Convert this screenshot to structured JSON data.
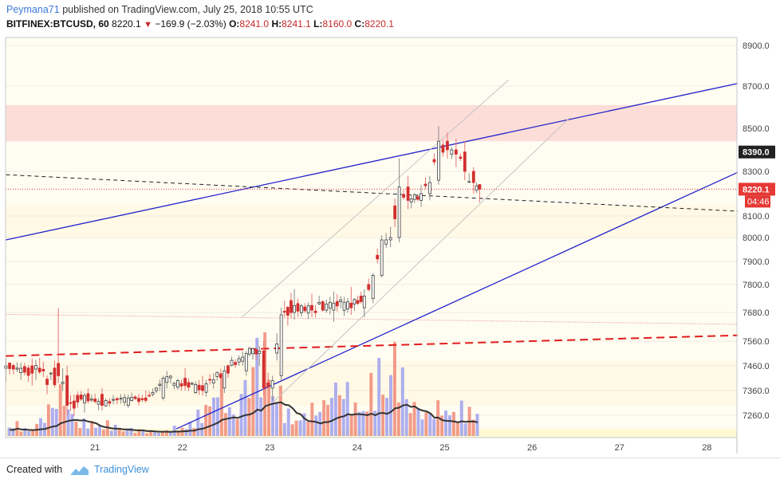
{
  "header": {
    "author": "Peymana71",
    "published_text": "published on TradingView.com, July 25, 2018 10:55 UTC",
    "symbol": "BITFINEX:BTCUSD, 60",
    "last": "8220.1",
    "change": "−169.9 (−2.03%)",
    "o_label": "O:",
    "o_value": "8241.0",
    "h_label": "H:",
    "h_value": "8241.1",
    "l_label": "L:",
    "l_value": "8160.0",
    "c_label": "C:",
    "c_value": "8220.1",
    "down_arrow": "▼"
  },
  "footer": {
    "created_with": "Created with",
    "brand": "TradingView"
  },
  "colors": {
    "up": "#3f3f3f",
    "down": "#d32f2f",
    "vol_up": "#9fa0f0",
    "vol_down": "#f08a78",
    "trendline": "#2222cc",
    "channel": "#c4c4c4",
    "resistance_zone": "#fcd9d5",
    "support_dashed": "#e11d1d",
    "price_tag": "#e53935",
    "marker_tag": "#222222"
  },
  "chart_data": {
    "type": "candlestick",
    "symbol": "BITFINEX:BTCUSD",
    "interval": "60",
    "y_ticks": [
      8900,
      8700,
      8500,
      8300,
      8100,
      8000,
      7900,
      7800,
      7680,
      7560,
      7460,
      7360,
      7260
    ],
    "y_tick_labels": [
      "8900.0",
      "8700.0",
      "8500.0",
      "8300.0",
      "8100.0",
      "8000.0",
      "7900.0",
      "7800.0",
      "7680.0",
      "7560.0",
      "7460.0",
      "7360.0",
      "7260.0"
    ],
    "x_ticks": [
      21,
      22,
      23,
      24,
      25,
      26,
      27,
      28
    ],
    "x_tick_labels": [
      "21",
      "22",
      "23",
      "24",
      "25",
      "26",
      "27",
      "28"
    ],
    "x_range": [
      20.0,
      28.45
    ],
    "price_tag": {
      "value": 8220.1,
      "label": "8220.1"
    },
    "countdown_tag": {
      "label": "04:46"
    },
    "marker_tag": {
      "value": 8390.0,
      "label": "8390.0"
    },
    "resistance_zone": [
      8440,
      8610
    ],
    "trendlines": [
      {
        "name": "upper-blue-trendline",
        "points": [
          [
            20.0,
            7990
          ],
          [
            28.45,
            8720
          ]
        ],
        "style": "solid"
      },
      {
        "name": "lower-blue-trendline",
        "points": [
          [
            21.95,
            7205
          ],
          [
            28.45,
            8310
          ]
        ],
        "style": "solid"
      },
      {
        "name": "black-dashed-trendline",
        "points": [
          [
            20.0,
            8285
          ],
          [
            28.45,
            8120
          ]
        ],
        "style": "dashed"
      },
      {
        "name": "red-dashed-support",
        "points": [
          [
            20.0,
            7500
          ],
          [
            28.45,
            7585
          ]
        ],
        "style": "dashed"
      },
      {
        "name": "red-dotted-line",
        "points": [
          [
            20.0,
            7672
          ],
          [
            28.45,
            7630
          ]
        ],
        "style": "dotted"
      },
      {
        "name": "channel-upper",
        "points": [
          [
            22.7,
            7660
          ],
          [
            25.75,
            8730
          ]
        ],
        "style": "solid"
      },
      {
        "name": "channel-lower",
        "points": [
          [
            23.05,
            7310
          ],
          [
            26.45,
            8550
          ]
        ],
        "style": "solid"
      }
    ],
    "anchor_candles": [
      [
        20.0,
        7450,
        7490,
        7395,
        7460
      ],
      [
        20.3,
        7460,
        7490,
        7380,
        7430
      ],
      [
        20.6,
        7470,
        7700,
        7390,
        7420
      ],
      [
        20.7,
        7420,
        7460,
        7260,
        7300
      ],
      [
        20.9,
        7310,
        7350,
        7270,
        7340
      ],
      [
        21.1,
        7345,
        7370,
        7280,
        7300
      ],
      [
        21.4,
        7300,
        7345,
        7290,
        7330
      ],
      [
        21.6,
        7330,
        7360,
        7310,
        7320
      ],
      [
        21.8,
        7330,
        7420,
        7320,
        7410
      ],
      [
        22.05,
        7410,
        7450,
        7360,
        7380
      ],
      [
        22.25,
        7380,
        7420,
        7340,
        7360
      ],
      [
        22.5,
        7370,
        7460,
        7350,
        7440
      ],
      [
        22.75,
        7440,
        7520,
        7420,
        7510
      ],
      [
        22.9,
        7510,
        7540,
        7460,
        7520
      ],
      [
        22.95,
        7520,
        7560,
        7340,
        7370
      ],
      [
        23.05,
        7370,
        7420,
        7320,
        7400
      ],
      [
        23.15,
        7420,
        7700,
        7400,
        7670
      ],
      [
        23.3,
        7680,
        7780,
        7650,
        7710
      ],
      [
        23.5,
        7710,
        7760,
        7660,
        7690
      ],
      [
        23.75,
        7690,
        7770,
        7640,
        7720
      ],
      [
        23.95,
        7720,
        7790,
        7670,
        7700
      ],
      [
        24.1,
        7700,
        7780,
        7660,
        7750
      ],
      [
        24.2,
        7740,
        7850,
        7720,
        7840
      ],
      [
        24.3,
        7840,
        8010,
        7830,
        7990
      ],
      [
        24.4,
        7990,
        8050,
        7960,
        8000
      ],
      [
        24.5,
        8000,
        8360,
        7980,
        8230
      ],
      [
        24.6,
        8230,
        8280,
        8130,
        8170
      ],
      [
        24.75,
        8170,
        8240,
        8140,
        8200
      ],
      [
        24.85,
        8200,
        8280,
        8170,
        8250
      ],
      [
        24.95,
        8260,
        8510,
        8240,
        8440
      ],
      [
        25.05,
        8440,
        8480,
        8360,
        8400
      ],
      [
        25.15,
        8400,
        8450,
        8320,
        8380
      ],
      [
        25.25,
        8390,
        8440,
        8260,
        8300
      ],
      [
        25.35,
        8300,
        8320,
        8200,
        8250
      ],
      [
        25.42,
        8241.0,
        8241.1,
        8160.0,
        8220.1
      ]
    ],
    "volume_scale": "relative (0-1)",
    "volume_profile": [
      0.18,
      0.05,
      0.2,
      0.45,
      0.12,
      0.15,
      0.1,
      0.07,
      0.05,
      0.05,
      0.1,
      0.2,
      0.55,
      0.18,
      0.8,
      0.85,
      0.2,
      0.22,
      0.3,
      0.55,
      0.3,
      0.5,
      0.9,
      0.4,
      0.22,
      0.3,
      0.25,
      0.3
    ],
    "volume_ma_note": "moving average line drawn over volume bars"
  }
}
